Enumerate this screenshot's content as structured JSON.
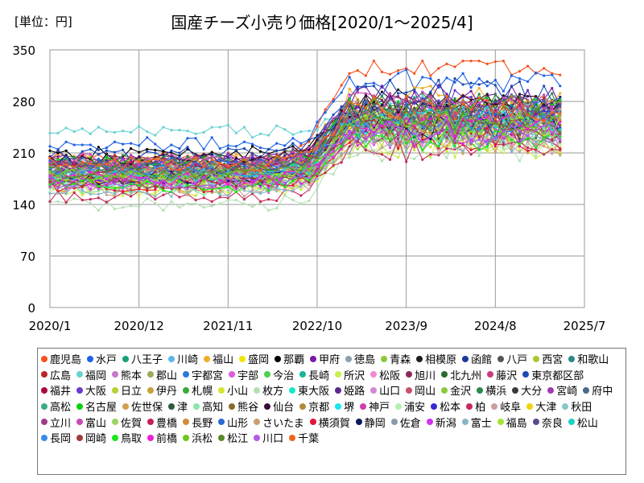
{
  "chart_data": {
    "type": "line",
    "title": "国産チーズ小売り価格[2020/1～2025/4]",
    "unit_label": "[単位：円]",
    "xlabel": "",
    "ylabel": "",
    "ylim": [
      0,
      350
    ],
    "yticks": [
      "0",
      "70",
      "140",
      "210",
      "280",
      "350"
    ],
    "xlim": [
      0,
      66
    ],
    "xticks": [
      {
        "label": "2020/1",
        "month": 0
      },
      {
        "label": "2020/12",
        "month": 11
      },
      {
        "label": "2021/11",
        "month": 22
      },
      {
        "label": "2022/10",
        "month": 33
      },
      {
        "label": "2023/9",
        "month": 44
      },
      {
        "label": "2024/8",
        "month": 55
      },
      {
        "label": "2025/7",
        "month": 66
      }
    ],
    "months_count": 64,
    "grid": true,
    "legend_position": "bottom",
    "series": [
      {
        "name": "鹿児島",
        "color": "#f4511e",
        "before": 205,
        "after": 330
      },
      {
        "name": "水戸",
        "color": "#1e62e8",
        "before": 222,
        "after": 310
      },
      {
        "name": "八王子",
        "color": "#19a07a",
        "before": 195,
        "after": 265
      },
      {
        "name": "川崎",
        "color": "#5cb8ea",
        "before": 190,
        "after": 270
      },
      {
        "name": "福山",
        "color": "#f2ae24",
        "before": 200,
        "after": 285
      },
      {
        "name": "盛岡",
        "color": "#f2e600",
        "before": 185,
        "after": 260
      },
      {
        "name": "那覇",
        "color": "#000000",
        "before": 210,
        "after": 270
      },
      {
        "name": "甲府",
        "color": "#7a1aa8",
        "before": 200,
        "after": 285
      },
      {
        "name": "徳島",
        "color": "#8aa0ae",
        "before": 175,
        "after": 255
      },
      {
        "name": "青森",
        "color": "#8cc83c",
        "before": 180,
        "after": 250
      },
      {
        "name": "相模原",
        "color": "#1e1e1e",
        "before": 195,
        "after": 280
      },
      {
        "name": "函館",
        "color": "#1a3a9a",
        "before": 180,
        "after": 255
      },
      {
        "name": "八戸",
        "color": "#555555",
        "before": 190,
        "after": 265
      },
      {
        "name": "西宮",
        "color": "#a8c832",
        "before": 185,
        "after": 260
      },
      {
        "name": "和歌山",
        "color": "#2a8a8a",
        "before": 175,
        "after": 245
      },
      {
        "name": "広島",
        "color": "#b42828",
        "before": 200,
        "after": 275
      },
      {
        "name": "福岡",
        "color": "#66d2d2",
        "before": 240,
        "after": 270
      },
      {
        "name": "熊本",
        "color": "#c878c8",
        "before": 190,
        "after": 260
      },
      {
        "name": "郡山",
        "color": "#9aaa5a",
        "before": 180,
        "after": 240
      },
      {
        "name": "宇都宮",
        "color": "#2a7ad8",
        "before": 170,
        "after": 255
      },
      {
        "name": "宇部",
        "color": "#e05ae0",
        "before": 165,
        "after": 230
      },
      {
        "name": "今治",
        "color": "#4ad24a",
        "before": 175,
        "after": 240
      },
      {
        "name": "長崎",
        "color": "#1ab49a",
        "before": 185,
        "after": 250
      },
      {
        "name": "所沢",
        "color": "#c8f050",
        "before": 160,
        "after": 220
      },
      {
        "name": "松阪",
        "color": "#f08ad2",
        "before": 170,
        "after": 235
      },
      {
        "name": "旭川",
        "color": "#8a2a5a",
        "before": 195,
        "after": 270
      },
      {
        "name": "北九州",
        "color": "#2a6a2a",
        "before": 190,
        "after": 265
      },
      {
        "name": "藤沢",
        "color": "#c83c82",
        "before": 185,
        "after": 250
      },
      {
        "name": "東京都区部",
        "color": "#1a4ab4",
        "before": 210,
        "after": 295
      },
      {
        "name": "福井",
        "color": "#aa0a3a",
        "before": 175,
        "after": 245
      },
      {
        "name": "大阪",
        "color": "#6a3ad2",
        "before": 200,
        "after": 280
      },
      {
        "name": "日立",
        "color": "#b4d232",
        "before": 165,
        "after": 230
      },
      {
        "name": "伊丹",
        "color": "#c8a03c",
        "before": 180,
        "after": 255
      },
      {
        "name": "札幌",
        "color": "#3aaa3a",
        "before": 175,
        "after": 240
      },
      {
        "name": "小山",
        "color": "#d2e632",
        "before": 160,
        "after": 225
      },
      {
        "name": "枚方",
        "color": "#b4e0b4",
        "before": 140,
        "after": 215
      },
      {
        "name": "東大阪",
        "color": "#1ae6c8",
        "before": 185,
        "after": 260
      },
      {
        "name": "姫路",
        "color": "#5a2a8a",
        "before": 195,
        "after": 265
      },
      {
        "name": "山口",
        "color": "#d28ad2",
        "before": 170,
        "after": 235
      },
      {
        "name": "岡山",
        "color": "#c8506e",
        "before": 190,
        "after": 255
      },
      {
        "name": "金沢",
        "color": "#8ac83c",
        "before": 185,
        "after": 245
      },
      {
        "name": "横浜",
        "color": "#2a8a4a",
        "before": 200,
        "after": 275
      },
      {
        "name": "大分",
        "color": "#3a3a3a",
        "before": 180,
        "after": 250
      },
      {
        "name": "宮崎",
        "color": "#a03cb4",
        "before": 175,
        "after": 240
      },
      {
        "name": "府中",
        "color": "#4a6a8a",
        "before": 190,
        "after": 265
      },
      {
        "name": "高松",
        "color": "#3aaa8a",
        "before": 185,
        "after": 255
      },
      {
        "name": "名古屋",
        "color": "#0ad20a",
        "before": 195,
        "after": 270
      },
      {
        "name": "佐世保",
        "color": "#d2a050",
        "before": 165,
        "after": 225
      },
      {
        "name": "津",
        "color": "#2a5a3a",
        "before": 175,
        "after": 245
      },
      {
        "name": "高知",
        "color": "#8ae6aa",
        "before": 160,
        "after": 230
      },
      {
        "name": "熊谷",
        "color": "#8a6a2a",
        "before": 180,
        "after": 250
      },
      {
        "name": "仙台",
        "color": "#3a0a3a",
        "before": 200,
        "after": 275
      },
      {
        "name": "京都",
        "color": "#b48a3a",
        "before": 195,
        "after": 270
      },
      {
        "name": "堺",
        "color": "#1ae6f0",
        "before": 170,
        "after": 240
      },
      {
        "name": "神戸",
        "color": "#d23cb4",
        "before": 190,
        "after": 260
      },
      {
        "name": "浦安",
        "color": "#b4f0b4",
        "before": 165,
        "after": 235
      },
      {
        "name": "松本",
        "color": "#3a2ad2",
        "before": 180,
        "after": 250
      },
      {
        "name": "柏",
        "color": "#c8285a",
        "before": 150,
        "after": 215
      },
      {
        "name": "岐阜",
        "color": "#c8a0a0",
        "before": 160,
        "after": 225
      },
      {
        "name": "大津",
        "color": "#f0d20a",
        "before": 175,
        "after": 245
      },
      {
        "name": "秋田",
        "color": "#8ac8c8",
        "before": 185,
        "after": 255
      },
      {
        "name": "立川",
        "color": "#a03c8a",
        "before": 170,
        "after": 240
      },
      {
        "name": "富山",
        "color": "#c84ab4",
        "before": 200,
        "after": 280
      },
      {
        "name": "佐賀",
        "color": "#9ad264",
        "before": 175,
        "after": 240
      },
      {
        "name": "豊橋",
        "color": "#c81e5a",
        "before": 190,
        "after": 260
      },
      {
        "name": "長野",
        "color": "#d28a3a",
        "before": 180,
        "after": 250
      },
      {
        "name": "山形",
        "color": "#2a6ad2",
        "before": 195,
        "after": 265
      },
      {
        "name": "さいたま",
        "color": "#c8a070",
        "before": 185,
        "after": 255
      },
      {
        "name": "横須賀",
        "color": "#e6143c",
        "before": 165,
        "after": 230
      },
      {
        "name": "静岡",
        "color": "#0a1a5a",
        "before": 175,
        "after": 245
      },
      {
        "name": "佐倉",
        "color": "#8a9aaa",
        "before": 180,
        "after": 240
      },
      {
        "name": "新潟",
        "color": "#d232f0",
        "before": 170,
        "after": 235
      },
      {
        "name": "富士",
        "color": "#8ab4c8",
        "before": 160,
        "after": 225
      },
      {
        "name": "福島",
        "color": "#a0e632",
        "before": 175,
        "after": 250
      },
      {
        "name": "奈良",
        "color": "#5a4a8a",
        "before": 190,
        "after": 260
      },
      {
        "name": "松山",
        "color": "#1ad2c8",
        "before": 180,
        "after": 255
      },
      {
        "name": "長岡",
        "color": "#3a8ae6",
        "before": 185,
        "after": 245
      },
      {
        "name": "岡崎",
        "color": "#a03c3c",
        "before": 170,
        "after": 240
      },
      {
        "name": "鳥取",
        "color": "#1ae61a",
        "before": 165,
        "after": 230
      },
      {
        "name": "前橋",
        "color": "#f01ed2",
        "before": 175,
        "after": 245
      },
      {
        "name": "浜松",
        "color": "#6ac81e",
        "before": 180,
        "after": 250
      },
      {
        "name": "松江",
        "color": "#5a8a2a",
        "before": 185,
        "after": 255
      },
      {
        "name": "川口",
        "color": "#b45ae6",
        "before": 170,
        "after": 240
      },
      {
        "name": "千葉",
        "color": "#f0641e",
        "before": 195,
        "after": 270
      }
    ]
  }
}
